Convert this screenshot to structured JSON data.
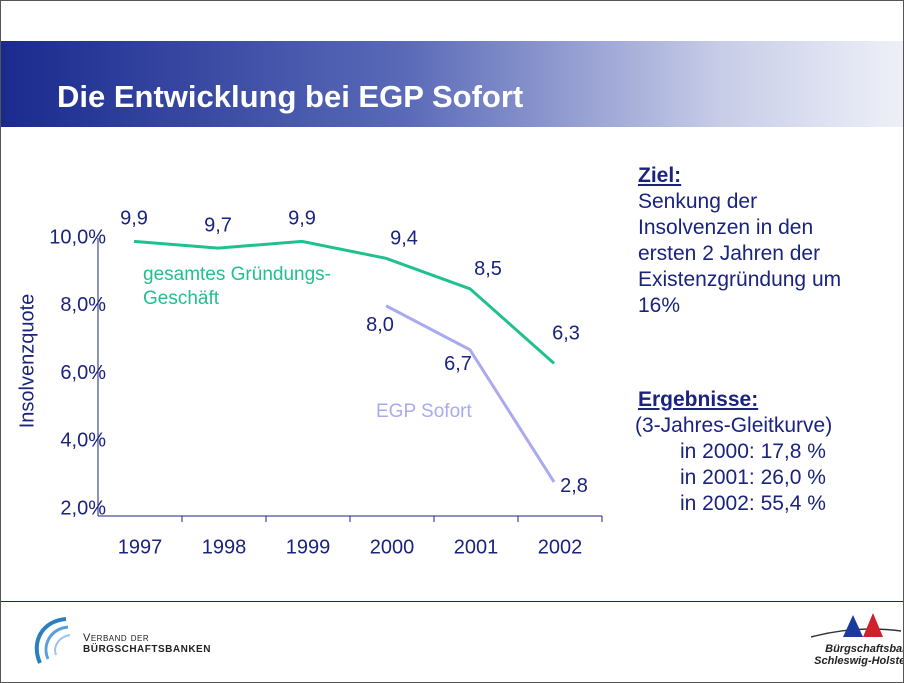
{
  "slide": {
    "title": "Die Entwicklung bei EGP Sofort",
    "side": {
      "goal_heading": "Ziel:",
      "goal_lines": [
        "Senkung der",
        "Insolvenzen in den",
        "ersten 2 Jahren der",
        "Existenzgründung um",
        "16%"
      ],
      "results_heading": "Ergebnisse:",
      "results_note": "(3-Jahres-Gleitkurve)",
      "results": [
        "in 2000: 17,8 %",
        "in 2001: 26,0 %",
        "in 2002: 55,4 %"
      ]
    },
    "footer": {
      "left_logo_line1": "Verband der",
      "left_logo_line2": "Bürgschaftsbanken",
      "right_logo_line1": "Bürgschaftsbank",
      "right_logo_line2": "Schleswig-Holstein"
    }
  },
  "chart_data": {
    "type": "line",
    "y_label": "Insolvenzquote",
    "categories": [
      "1997",
      "1998",
      "1999",
      "2000",
      "2001",
      "2002"
    ],
    "series": [
      {
        "name": "gesamtes Gründungs-Geschäft",
        "color": "#20c090",
        "values": [
          9.9,
          9.7,
          9.9,
          9.4,
          8.5,
          6.3
        ],
        "value_labels": [
          "9,9",
          "9,7",
          "9,9",
          "9,4",
          "8,5",
          "6,3"
        ]
      },
      {
        "name": "EGP Sofort",
        "color": "#aaaaf0",
        "values": [
          null,
          null,
          null,
          8.0,
          6.7,
          2.8
        ],
        "value_labels": [
          null,
          null,
          null,
          "8,0",
          "6,7",
          "2,8"
        ]
      }
    ],
    "ylim": [
      2,
      10
    ],
    "yticks": [
      {
        "value": 2,
        "label": "2,0%"
      },
      {
        "value": 4,
        "label": "4,0%"
      },
      {
        "value": 6,
        "label": "6,0%"
      },
      {
        "value": 8,
        "label": "8,0%"
      },
      {
        "value": 10,
        "label": "10,0%"
      }
    ]
  }
}
